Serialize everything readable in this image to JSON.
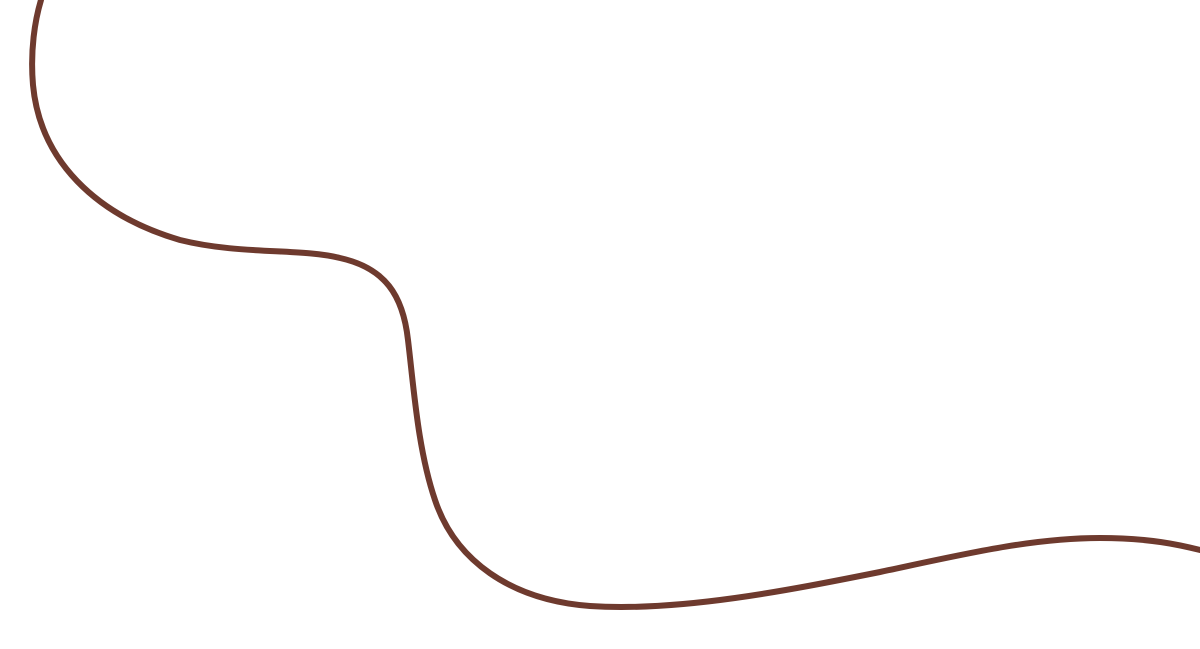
{
  "canvas": {
    "background_color": "#ffffff",
    "stroke_color": "#6e3a2e"
  }
}
